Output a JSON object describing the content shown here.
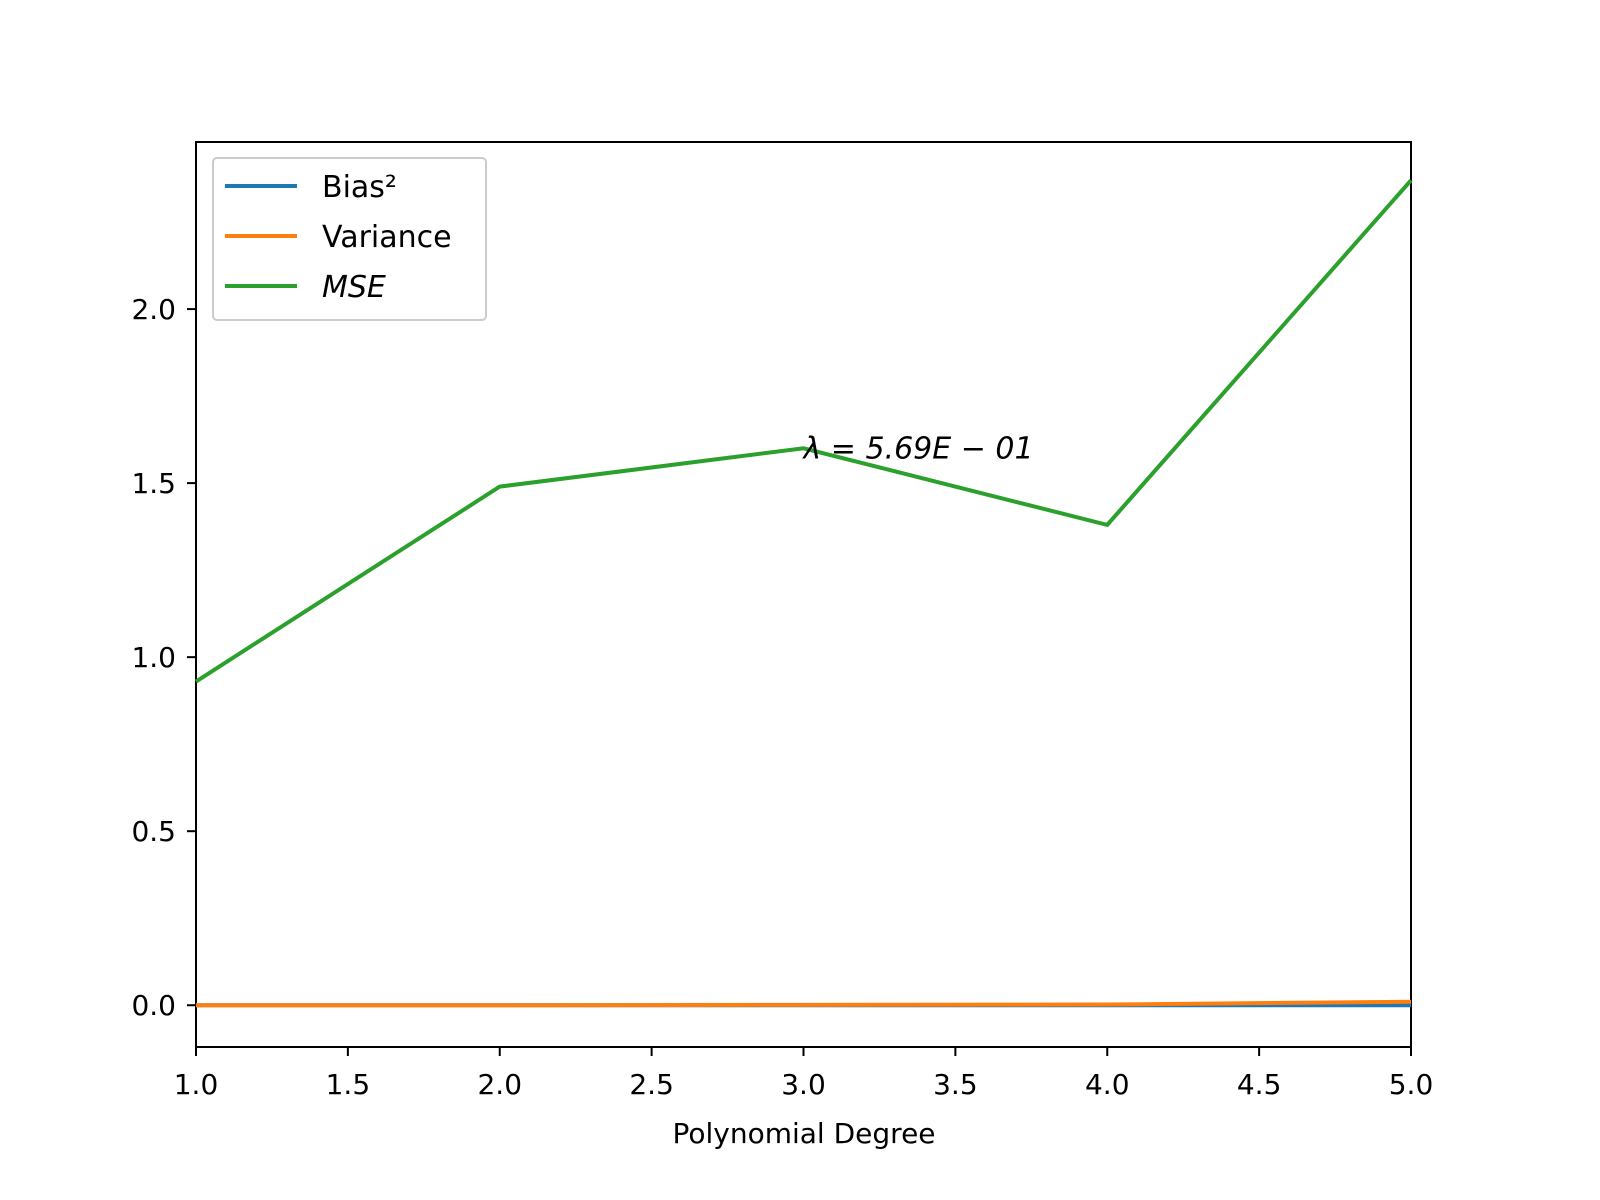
{
  "chart_data": {
    "type": "line",
    "title": "",
    "xlabel": "Polynomial Degree",
    "ylabel": "",
    "x": [
      1.0,
      2.0,
      3.0,
      4.0,
      5.0
    ],
    "xlim": [
      1.0,
      5.0
    ],
    "ylim": [
      -0.12,
      2.48
    ],
    "x_ticks": [
      "1.0",
      "1.5",
      "2.0",
      "2.5",
      "3.0",
      "3.5",
      "4.0",
      "4.5",
      "5.0"
    ],
    "y_ticks": [
      "0.0",
      "0.5",
      "1.0",
      "1.5",
      "2.0"
    ],
    "grid": false,
    "legend_position": "top-left",
    "series": [
      {
        "name": "Bias²",
        "color": "#1f77b4",
        "values": [
          0.0,
          0.0,
          0.0,
          0.0,
          0.0
        ]
      },
      {
        "name": "Variance",
        "color": "#ff7f0e",
        "values": [
          0.0,
          0.0,
          0.001,
          0.002,
          0.01
        ]
      },
      {
        "name": "MSE",
        "color": "#2ca02c",
        "values": [
          0.93,
          1.49,
          1.6,
          1.38,
          2.37
        ]
      }
    ],
    "annotation": {
      "text": "λ = 5.69E − 01",
      "x": 3.0,
      "y": 1.6
    }
  }
}
